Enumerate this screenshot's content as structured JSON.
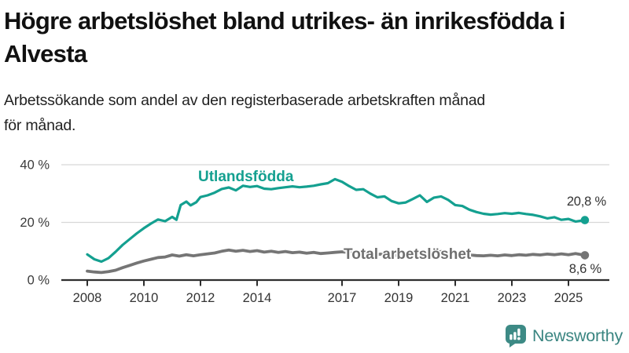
{
  "header": {
    "title_line1": "Högre arbetslöshet bland utrikes- än inrikesfödda i",
    "title_line2": "Alvesta",
    "subtitle_line1": "Arbetssökande som andel av den registerbaserade arbetskraften månad",
    "subtitle_line2": "för månad."
  },
  "chart_data": {
    "type": "line",
    "title": "Högre arbetslöshet bland utrikes- än inrikesfödda i Alvesta",
    "subtitle": "Arbetssökande som andel av den registerbaserade arbetskraften månad för månad.",
    "unit": "%",
    "x_range": [
      2008,
      2025.6
    ],
    "ylim": [
      0,
      44
    ],
    "grid": "horizontal",
    "legend_position": "inline-labels",
    "y_ticks": [
      {
        "value": 0,
        "label": "0 %"
      },
      {
        "value": 20,
        "label": "20 %"
      },
      {
        "value": 40,
        "label": "40 %"
      }
    ],
    "x_ticks": [
      {
        "year": 2008,
        "label": "2008"
      },
      {
        "year": 2010,
        "label": "2010"
      },
      {
        "year": 2012,
        "label": "2012"
      },
      {
        "year": 2014,
        "label": "2014"
      },
      {
        "year": 2017,
        "label": "2017"
      },
      {
        "year": 2019,
        "label": "2019"
      },
      {
        "year": 2021,
        "label": "2021"
      },
      {
        "year": 2023,
        "label": "2023"
      },
      {
        "year": 2025,
        "label": "2025"
      }
    ],
    "series": [
      {
        "name": "Utlandsfödda",
        "color": "#14a090",
        "end_value": 20.8,
        "end_label": "20,8 %",
        "points": [
          [
            2008.0,
            8.9
          ],
          [
            2008.25,
            7.2
          ],
          [
            2008.5,
            6.4
          ],
          [
            2008.75,
            7.6
          ],
          [
            2009.0,
            9.8
          ],
          [
            2009.25,
            12.2
          ],
          [
            2009.5,
            14.2
          ],
          [
            2009.75,
            16.2
          ],
          [
            2010.0,
            18.0
          ],
          [
            2010.25,
            19.6
          ],
          [
            2010.5,
            21.0
          ],
          [
            2010.75,
            20.4
          ],
          [
            2011.0,
            21.9
          ],
          [
            2011.15,
            20.9
          ],
          [
            2011.3,
            26.0
          ],
          [
            2011.5,
            27.2
          ],
          [
            2011.65,
            25.9
          ],
          [
            2011.85,
            27.0
          ],
          [
            2012.0,
            28.8
          ],
          [
            2012.25,
            29.4
          ],
          [
            2012.5,
            30.3
          ],
          [
            2012.75,
            31.6
          ],
          [
            2013.0,
            32.1
          ],
          [
            2013.25,
            31.1
          ],
          [
            2013.5,
            32.7
          ],
          [
            2013.75,
            32.3
          ],
          [
            2014.0,
            32.6
          ],
          [
            2014.25,
            31.7
          ],
          [
            2014.5,
            31.5
          ],
          [
            2014.75,
            31.9
          ],
          [
            2015.0,
            32.2
          ],
          [
            2015.25,
            32.5
          ],
          [
            2015.5,
            32.2
          ],
          [
            2015.75,
            32.4
          ],
          [
            2016.0,
            32.7
          ],
          [
            2016.25,
            33.2
          ],
          [
            2016.5,
            33.6
          ],
          [
            2016.75,
            35.0
          ],
          [
            2017.0,
            34.1
          ],
          [
            2017.25,
            32.6
          ],
          [
            2017.5,
            31.3
          ],
          [
            2017.75,
            31.5
          ],
          [
            2018.0,
            30.0
          ],
          [
            2018.25,
            28.7
          ],
          [
            2018.5,
            29.0
          ],
          [
            2018.75,
            27.4
          ],
          [
            2019.0,
            26.6
          ],
          [
            2019.25,
            26.9
          ],
          [
            2019.5,
            28.1
          ],
          [
            2019.75,
            29.4
          ],
          [
            2020.0,
            27.1
          ],
          [
            2020.25,
            28.6
          ],
          [
            2020.5,
            29.0
          ],
          [
            2020.75,
            27.8
          ],
          [
            2021.0,
            26.0
          ],
          [
            2021.25,
            25.7
          ],
          [
            2021.5,
            24.4
          ],
          [
            2021.75,
            23.6
          ],
          [
            2022.0,
            23.0
          ],
          [
            2022.25,
            22.7
          ],
          [
            2022.5,
            22.9
          ],
          [
            2022.75,
            23.2
          ],
          [
            2023.0,
            23.0
          ],
          [
            2023.25,
            23.3
          ],
          [
            2023.5,
            22.9
          ],
          [
            2023.75,
            22.6
          ],
          [
            2024.0,
            22.1
          ],
          [
            2024.25,
            21.4
          ],
          [
            2024.5,
            21.8
          ],
          [
            2024.75,
            20.9
          ],
          [
            2025.0,
            21.2
          ],
          [
            2025.25,
            20.3
          ],
          [
            2025.58,
            20.8
          ]
        ]
      },
      {
        "name": "Total arbetslöshet",
        "color": "#757575",
        "end_value": 8.6,
        "end_label": "8,6 %",
        "points": [
          [
            2008.0,
            3.1
          ],
          [
            2008.25,
            2.8
          ],
          [
            2008.5,
            2.6
          ],
          [
            2008.75,
            2.9
          ],
          [
            2009.0,
            3.4
          ],
          [
            2009.25,
            4.3
          ],
          [
            2009.5,
            5.1
          ],
          [
            2009.75,
            5.9
          ],
          [
            2010.0,
            6.6
          ],
          [
            2010.25,
            7.2
          ],
          [
            2010.5,
            7.8
          ],
          [
            2010.75,
            8.0
          ],
          [
            2011.0,
            8.7
          ],
          [
            2011.25,
            8.3
          ],
          [
            2011.5,
            8.8
          ],
          [
            2011.75,
            8.4
          ],
          [
            2012.0,
            8.8
          ],
          [
            2012.25,
            9.1
          ],
          [
            2012.5,
            9.4
          ],
          [
            2012.75,
            10.0
          ],
          [
            2013.0,
            10.4
          ],
          [
            2013.25,
            10.0
          ],
          [
            2013.5,
            10.3
          ],
          [
            2013.75,
            9.9
          ],
          [
            2014.0,
            10.2
          ],
          [
            2014.25,
            9.7
          ],
          [
            2014.5,
            10.0
          ],
          [
            2014.75,
            9.6
          ],
          [
            2015.0,
            9.9
          ],
          [
            2015.25,
            9.5
          ],
          [
            2015.5,
            9.7
          ],
          [
            2015.75,
            9.3
          ],
          [
            2016.0,
            9.6
          ],
          [
            2016.25,
            9.2
          ],
          [
            2016.5,
            9.4
          ],
          [
            2016.75,
            9.6
          ],
          [
            2017.0,
            9.8
          ],
          [
            2017.25,
            9.5
          ],
          [
            2017.5,
            9.7
          ],
          [
            2017.75,
            9.4
          ],
          [
            2018.0,
            9.2
          ],
          [
            2018.25,
            8.9
          ],
          [
            2018.5,
            9.1
          ],
          [
            2018.75,
            8.7
          ],
          [
            2019.0,
            8.5
          ],
          [
            2019.25,
            8.7
          ],
          [
            2019.5,
            9.0
          ],
          [
            2019.75,
            9.3
          ],
          [
            2020.0,
            8.9
          ],
          [
            2020.25,
            9.6
          ],
          [
            2020.5,
            9.9
          ],
          [
            2020.75,
            9.5
          ],
          [
            2021.0,
            9.1
          ],
          [
            2021.25,
            8.9
          ],
          [
            2021.5,
            8.7
          ],
          [
            2021.75,
            8.5
          ],
          [
            2022.0,
            8.4
          ],
          [
            2022.25,
            8.6
          ],
          [
            2022.5,
            8.4
          ],
          [
            2022.75,
            8.7
          ],
          [
            2023.0,
            8.5
          ],
          [
            2023.25,
            8.8
          ],
          [
            2023.5,
            8.6
          ],
          [
            2023.75,
            8.9
          ],
          [
            2024.0,
            8.7
          ],
          [
            2024.25,
            9.0
          ],
          [
            2024.5,
            8.8
          ],
          [
            2024.75,
            9.1
          ],
          [
            2025.0,
            8.8
          ],
          [
            2025.25,
            9.2
          ],
          [
            2025.58,
            8.6
          ]
        ]
      }
    ]
  },
  "branding": {
    "name": "Newsworthy",
    "logo_icon": "bar-chart-speech-bubble-icon",
    "color": "#3a8581"
  },
  "colors": {
    "accent_teal": "#14a090",
    "series_gray": "#757575",
    "axis": "#2e2e2e",
    "gridline": "#d8d8d8",
    "text_dark": "#111111"
  }
}
